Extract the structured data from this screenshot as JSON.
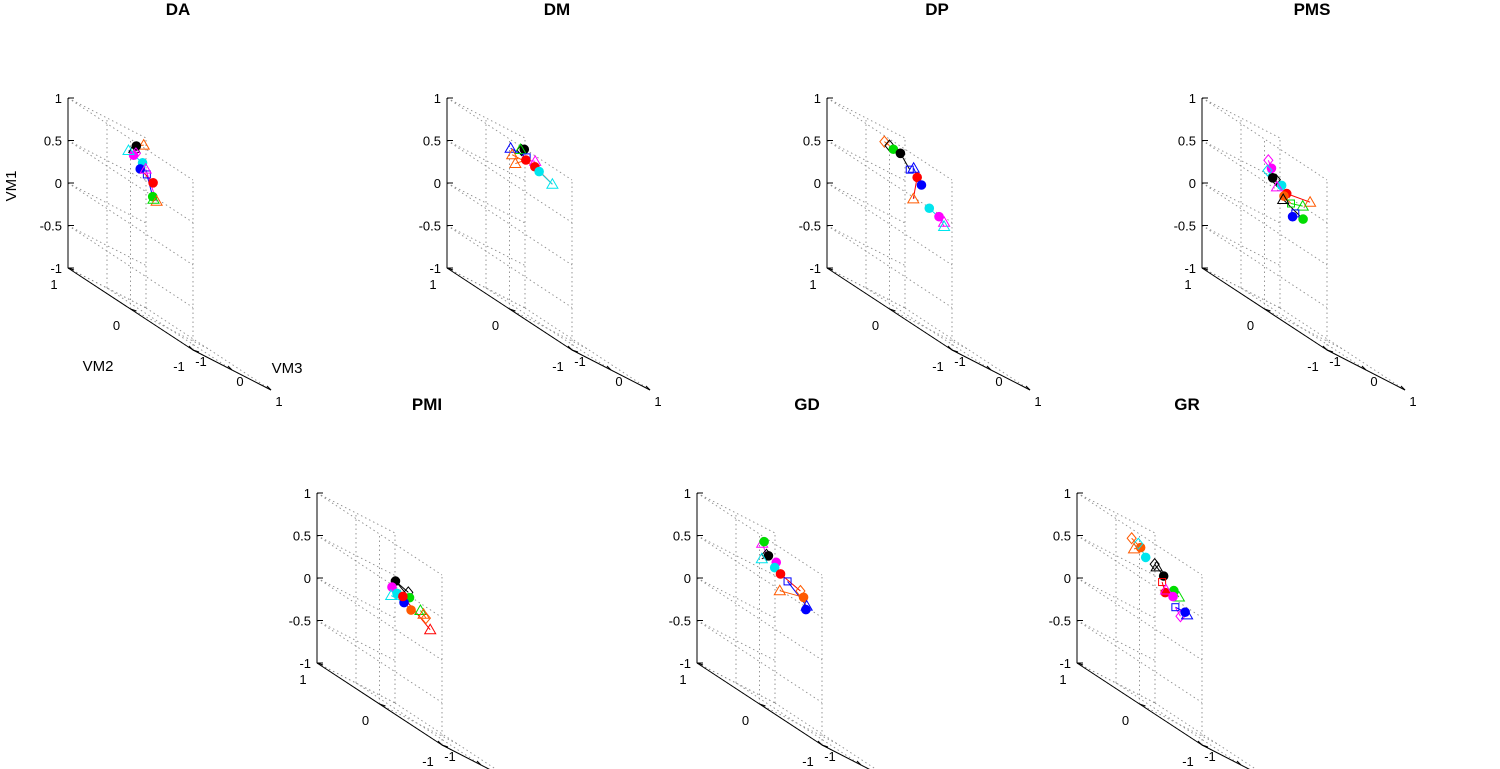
{
  "chart_data": {
    "type": "scatter",
    "view": "3d",
    "axes": {
      "z": {
        "label": "VM1",
        "ticks": [
          "1",
          "0.5",
          "0",
          "-0.5",
          "-1"
        ],
        "range": [
          -1,
          1
        ]
      },
      "y": {
        "label": "VM2",
        "ticks": [
          "1",
          "0",
          "-1"
        ],
        "range": [
          -1,
          1
        ]
      },
      "x": {
        "label": "VM3",
        "ticks": [
          "-1",
          "0",
          "1"
        ],
        "range": [
          -1,
          1
        ]
      }
    },
    "colors": {
      "black": "#000000",
      "red": "#ff0000",
      "orange": "#ff5a00",
      "blue": "#0000ff",
      "cyan": "#00e5ee",
      "magenta": "#ff00ff",
      "green": "#00dd00"
    },
    "panels": [
      {
        "title": "DA",
        "points": [
          {
            "c": "orange",
            "m": "triangle",
            "x": 0.22,
            "y": 0.55,
            "z": 0.95
          },
          {
            "c": "black",
            "m": "circle",
            "x": -0.05,
            "y": 0.5,
            "z": 0.9
          },
          {
            "c": "black",
            "m": "triangle",
            "x": -0.1,
            "y": 0.5,
            "z": 0.86
          },
          {
            "c": "magenta",
            "m": "diamond",
            "x": 0.1,
            "y": 0.6,
            "z": 0.8
          },
          {
            "c": "cyan",
            "m": "circle",
            "x": -0.05,
            "y": 0.4,
            "z": 0.75
          },
          {
            "c": "magenta",
            "m": "circle",
            "x": -0.2,
            "y": 0.45,
            "z": 0.78
          },
          {
            "c": "cyan",
            "m": "triangle",
            "x": -0.25,
            "y": 0.5,
            "z": 0.8
          },
          {
            "c": "blue",
            "m": "square",
            "x": -0.1,
            "y": 0.3,
            "z": 0.65
          },
          {
            "c": "red",
            "m": "circle",
            "x": -0.1,
            "y": 0.2,
            "z": 0.6
          },
          {
            "c": "blue",
            "m": "circle",
            "x": -0.35,
            "y": 0.25,
            "z": 0.68
          },
          {
            "c": "magenta",
            "m": "triangle",
            "x": -0.05,
            "y": 0.35,
            "z": 0.7
          },
          {
            "c": "green",
            "m": "circle",
            "x": -0.35,
            "y": 0.05,
            "z": 0.45
          },
          {
            "c": "orange",
            "m": "triangle",
            "x": -0.25,
            "y": 0.05,
            "z": 0.42
          },
          {
            "c": "green",
            "m": "triangle",
            "x": -0.25,
            "y": 0.1,
            "z": 0.42
          }
        ]
      },
      {
        "title": "DM",
        "points": [
          {
            "c": "black",
            "m": "circle",
            "x": 0.1,
            "y": 0.45,
            "z": 0.92
          },
          {
            "c": "black",
            "m": "diamond",
            "x": -0.05,
            "y": 0.4,
            "z": 0.9
          },
          {
            "c": "green",
            "m": "triangle",
            "x": -0.08,
            "y": 0.4,
            "z": 0.9
          },
          {
            "c": "magenta",
            "m": "triangle",
            "x": 0.3,
            "y": 0.4,
            "z": 0.85
          },
          {
            "c": "blue",
            "m": "triangle",
            "x": -0.25,
            "y": 0.45,
            "z": 0.85
          },
          {
            "c": "blue",
            "m": "square",
            "x": 0.0,
            "y": 0.35,
            "z": 0.85
          },
          {
            "c": "red",
            "m": "circle",
            "x": 0.05,
            "y": 0.25,
            "z": 0.8
          },
          {
            "c": "red",
            "m": "circle",
            "x": -0.1,
            "y": 0.3,
            "z": 0.82
          },
          {
            "c": "cyan",
            "m": "circle",
            "x": 0.0,
            "y": 0.15,
            "z": 0.78
          },
          {
            "c": "cyan",
            "m": "triangle",
            "x": 0.5,
            "y": 0.25,
            "z": 0.7
          },
          {
            "c": "orange",
            "m": "triangle",
            "x": -0.45,
            "y": 0.3,
            "z": 0.8
          },
          {
            "c": "orange",
            "m": "triangle",
            "x": -0.45,
            "y": 0.25,
            "z": 0.72
          }
        ]
      },
      {
        "title": "DP",
        "points": [
          {
            "c": "orange",
            "m": "diamond",
            "x": -0.25,
            "y": 0.55,
            "z": 0.88
          },
          {
            "c": "black",
            "m": "diamond",
            "x": -0.2,
            "y": 0.5,
            "z": 0.87
          },
          {
            "c": "green",
            "m": "circle",
            "x": -0.1,
            "y": 0.5,
            "z": 0.85
          },
          {
            "c": "black",
            "m": "circle",
            "x": 0.0,
            "y": 0.45,
            "z": 0.85
          },
          {
            "c": "blue",
            "m": "triangle",
            "x": 0.1,
            "y": 0.3,
            "z": 0.77
          },
          {
            "c": "blue",
            "m": "square",
            "x": 0.0,
            "y": 0.3,
            "z": 0.73
          },
          {
            "c": "red",
            "m": "circle",
            "x": -0.05,
            "y": 0.15,
            "z": 0.7
          },
          {
            "c": "blue",
            "m": "circle",
            "x": 0.3,
            "y": 0.3,
            "z": 0.62
          },
          {
            "c": "orange",
            "m": "triangle",
            "x": -0.55,
            "y": -0.1,
            "z": 0.45
          },
          {
            "c": "cyan",
            "m": "circle",
            "x": 0.1,
            "y": 0.05,
            "z": 0.42
          },
          {
            "c": "magenta",
            "m": "circle",
            "x": 0.35,
            "y": 0.05,
            "z": 0.38
          },
          {
            "c": "magenta",
            "m": "triangle",
            "x": 0.4,
            "y": 0.0,
            "z": 0.35
          },
          {
            "c": "cyan",
            "m": "triangle",
            "x": 0.4,
            "y": 0.0,
            "z": 0.3
          }
        ]
      },
      {
        "title": "PMS",
        "points": [
          {
            "c": "magenta",
            "m": "diamond",
            "x": -0.1,
            "y": 0.5,
            "z": 0.72
          },
          {
            "c": "magenta",
            "m": "circle",
            "x": -0.1,
            "y": 0.45,
            "z": 0.65
          },
          {
            "c": "cyan",
            "m": "diamond",
            "x": -0.2,
            "y": 0.45,
            "z": 0.6
          },
          {
            "c": "black",
            "m": "circle",
            "x": -0.15,
            "y": 0.4,
            "z": 0.55
          },
          {
            "c": "black",
            "m": "diamond",
            "x": -0.1,
            "y": 0.38,
            "z": 0.55
          },
          {
            "c": "cyan",
            "m": "circle",
            "x": 0.0,
            "y": 0.35,
            "z": 0.52
          },
          {
            "c": "magenta",
            "m": "triangle",
            "x": -0.2,
            "y": 0.3,
            "z": 0.48
          },
          {
            "c": "red",
            "m": "circle",
            "x": 0.05,
            "y": 0.3,
            "z": 0.46
          },
          {
            "c": "orange",
            "m": "triangle",
            "x": 0.65,
            "y": 0.3,
            "z": 0.5
          },
          {
            "c": "orange",
            "m": "circle",
            "x": -0.1,
            "y": 0.25,
            "z": 0.42
          },
          {
            "c": "green",
            "m": "square",
            "x": 0.0,
            "y": 0.2,
            "z": 0.38
          },
          {
            "c": "black",
            "m": "triangle",
            "x": -0.2,
            "y": 0.2,
            "z": 0.38
          },
          {
            "c": "green",
            "m": "triangle",
            "x": 0.3,
            "y": 0.2,
            "z": 0.42
          },
          {
            "c": "green",
            "m": "circle",
            "x": 0.15,
            "y": 0.1,
            "z": 0.28
          },
          {
            "c": "blue",
            "m": "square",
            "x": -0.05,
            "y": 0.1,
            "z": 0.3
          },
          {
            "c": "blue",
            "m": "circle",
            "x": -0.2,
            "y": 0.05,
            "z": 0.25
          }
        ]
      },
      {
        "title": "PMI",
        "points": [
          {
            "c": "black",
            "m": "diamond",
            "x": 0.3,
            "y": 0.35,
            "z": 0.45
          },
          {
            "c": "black",
            "m": "circle",
            "x": 0.05,
            "y": 0.4,
            "z": 0.5
          },
          {
            "c": "green",
            "m": "circle",
            "x": 0.25,
            "y": 0.3,
            "z": 0.4
          },
          {
            "c": "green",
            "m": "triangle",
            "x": 0.45,
            "y": 0.25,
            "z": 0.32
          },
          {
            "c": "orange",
            "m": "triangle",
            "x": 0.45,
            "y": 0.2,
            "z": 0.3
          },
          {
            "c": "orange",
            "m": "diamond",
            "x": 0.35,
            "y": 0.1,
            "z": 0.28
          },
          {
            "c": "red",
            "m": "triangle",
            "x": 0.3,
            "y": 0.0,
            "z": 0.18
          },
          {
            "c": "magenta",
            "m": "circle",
            "x": -0.2,
            "y": 0.3,
            "z": 0.42
          },
          {
            "c": "cyan",
            "m": "circle",
            "x": -0.15,
            "y": 0.25,
            "z": 0.38
          },
          {
            "c": "cyan",
            "m": "triangle",
            "x": -0.3,
            "y": 0.25,
            "z": 0.32
          },
          {
            "c": "blue",
            "m": "circle",
            "x": -0.05,
            "y": 0.2,
            "z": 0.32
          },
          {
            "c": "red",
            "m": "circle",
            "x": 0.0,
            "y": 0.25,
            "z": 0.38
          },
          {
            "c": "orange",
            "m": "circle",
            "x": 0.05,
            "y": 0.15,
            "z": 0.28
          }
        ]
      },
      {
        "title": "GD",
        "points": [
          {
            "c": "magenta",
            "m": "triangle",
            "x": -0.05,
            "y": 0.55,
            "z": 0.85
          },
          {
            "c": "green",
            "m": "circle",
            "x": 0.0,
            "y": 0.55,
            "z": 0.88
          },
          {
            "c": "black",
            "m": "diamond",
            "x": -0.1,
            "y": 0.45,
            "z": 0.75
          },
          {
            "c": "black",
            "m": "circle",
            "x": -0.05,
            "y": 0.45,
            "z": 0.75
          },
          {
            "c": "magenta",
            "m": "circle",
            "x": 0.15,
            "y": 0.45,
            "z": 0.72
          },
          {
            "c": "cyan",
            "m": "triangle",
            "x": -0.3,
            "y": 0.4,
            "z": 0.68
          },
          {
            "c": "cyan",
            "m": "circle",
            "x": -0.05,
            "y": 0.35,
            "z": 0.66
          },
          {
            "c": "red",
            "m": "circle",
            "x": 0.1,
            "y": 0.35,
            "z": 0.62
          },
          {
            "c": "blue",
            "m": "square",
            "x": 0.2,
            "y": 0.3,
            "z": 0.58
          },
          {
            "c": "orange",
            "m": "diamond",
            "x": 0.45,
            "y": 0.25,
            "z": 0.55
          },
          {
            "c": "orange",
            "m": "circle",
            "x": 0.45,
            "y": 0.2,
            "z": 0.5
          },
          {
            "c": "blue",
            "m": "triangle",
            "x": 0.45,
            "y": 0.15,
            "z": 0.42
          },
          {
            "c": "blue",
            "m": "circle",
            "x": 0.35,
            "y": 0.1,
            "z": 0.38
          },
          {
            "c": "orange",
            "m": "triangle",
            "x": -0.4,
            "y": 0.05,
            "z": 0.45
          }
        ]
      },
      {
        "title": "GR",
        "points": [
          {
            "c": "orange",
            "m": "diamond",
            "x": -0.4,
            "y": 0.5,
            "z": 0.85
          },
          {
            "c": "orange",
            "m": "circle",
            "x": -0.25,
            "y": 0.45,
            "z": 0.8
          },
          {
            "c": "cyan",
            "m": "diamond",
            "x": -0.15,
            "y": 0.55,
            "z": 0.82
          },
          {
            "c": "orange",
            "m": "triangle",
            "x": -0.5,
            "y": 0.4,
            "z": 0.75
          },
          {
            "c": "cyan",
            "m": "circle",
            "x": -0.2,
            "y": 0.4,
            "z": 0.72
          },
          {
            "c": "black",
            "m": "diamond",
            "x": -0.05,
            "y": 0.35,
            "z": 0.7
          },
          {
            "c": "black",
            "m": "triangle",
            "x": 0.0,
            "y": 0.35,
            "z": 0.68
          },
          {
            "c": "black",
            "m": "circle",
            "x": 0.1,
            "y": 0.3,
            "z": 0.62
          },
          {
            "c": "green",
            "m": "circle",
            "x": 0.2,
            "y": 0.2,
            "z": 0.52
          },
          {
            "c": "green",
            "m": "triangle",
            "x": 0.25,
            "y": 0.15,
            "z": 0.48
          },
          {
            "c": "red",
            "m": "square",
            "x": -0.1,
            "y": 0.2,
            "z": 0.55
          },
          {
            "c": "red",
            "m": "circle",
            "x": -0.1,
            "y": 0.15,
            "z": 0.45
          },
          {
            "c": "magenta",
            "m": "triangle",
            "x": 0.0,
            "y": 0.2,
            "z": 0.48
          },
          {
            "c": "magenta",
            "m": "circle",
            "x": 0.1,
            "y": 0.15,
            "z": 0.45
          },
          {
            "c": "blue",
            "m": "square",
            "x": 0.0,
            "y": 0.05,
            "z": 0.35
          },
          {
            "c": "magenta",
            "m": "diamond",
            "x": 0.05,
            "y": 0.0,
            "z": 0.28
          },
          {
            "c": "blue",
            "m": "circle",
            "x": 0.25,
            "y": 0.05,
            "z": 0.35
          },
          {
            "c": "blue",
            "m": "triangle",
            "x": 0.3,
            "y": 0.05,
            "z": 0.33
          }
        ]
      }
    ],
    "links": [
      [
        [
          0,
          1
        ],
        [
          2,
          1
        ],
        [
          3,
          6
        ],
        [
          4,
          6
        ],
        [
          7,
          11
        ],
        [
          8,
          9
        ],
        [
          10,
          12
        ]
      ],
      [
        [
          0,
          2
        ],
        [
          3,
          7
        ],
        [
          4,
          5
        ],
        [
          6,
          9
        ],
        [
          8,
          9
        ],
        [
          10,
          6
        ],
        [
          11,
          7
        ]
      ],
      [
        [
          0,
          1
        ],
        [
          2,
          3
        ],
        [
          3,
          5
        ],
        [
          4,
          7
        ],
        [
          6,
          8
        ],
        [
          9,
          11
        ],
        [
          10,
          12
        ]
      ],
      [
        [
          0,
          1
        ],
        [
          2,
          3
        ],
        [
          4,
          6
        ],
        [
          7,
          8
        ],
        [
          9,
          10
        ],
        [
          10,
          12
        ],
        [
          11,
          13
        ],
        [
          14,
          15
        ]
      ],
      [
        [
          0,
          1
        ],
        [
          1,
          2
        ],
        [
          3,
          4
        ],
        [
          4,
          5
        ],
        [
          6,
          11
        ],
        [
          7,
          8
        ],
        [
          9,
          10
        ],
        [
          12,
          10
        ]
      ],
      [
        [
          0,
          2
        ],
        [
          3,
          5
        ],
        [
          4,
          6
        ],
        [
          7,
          9
        ],
        [
          8,
          11
        ],
        [
          10,
          12
        ],
        [
          13,
          10
        ]
      ],
      [
        [
          0,
          1
        ],
        [
          2,
          4
        ],
        [
          3,
          1
        ],
        [
          5,
          6
        ],
        [
          6,
          7
        ],
        [
          8,
          9
        ],
        [
          10,
          11
        ],
        [
          12,
          13
        ],
        [
          14,
          16
        ],
        [
          15,
          14
        ]
      ]
    ]
  }
}
